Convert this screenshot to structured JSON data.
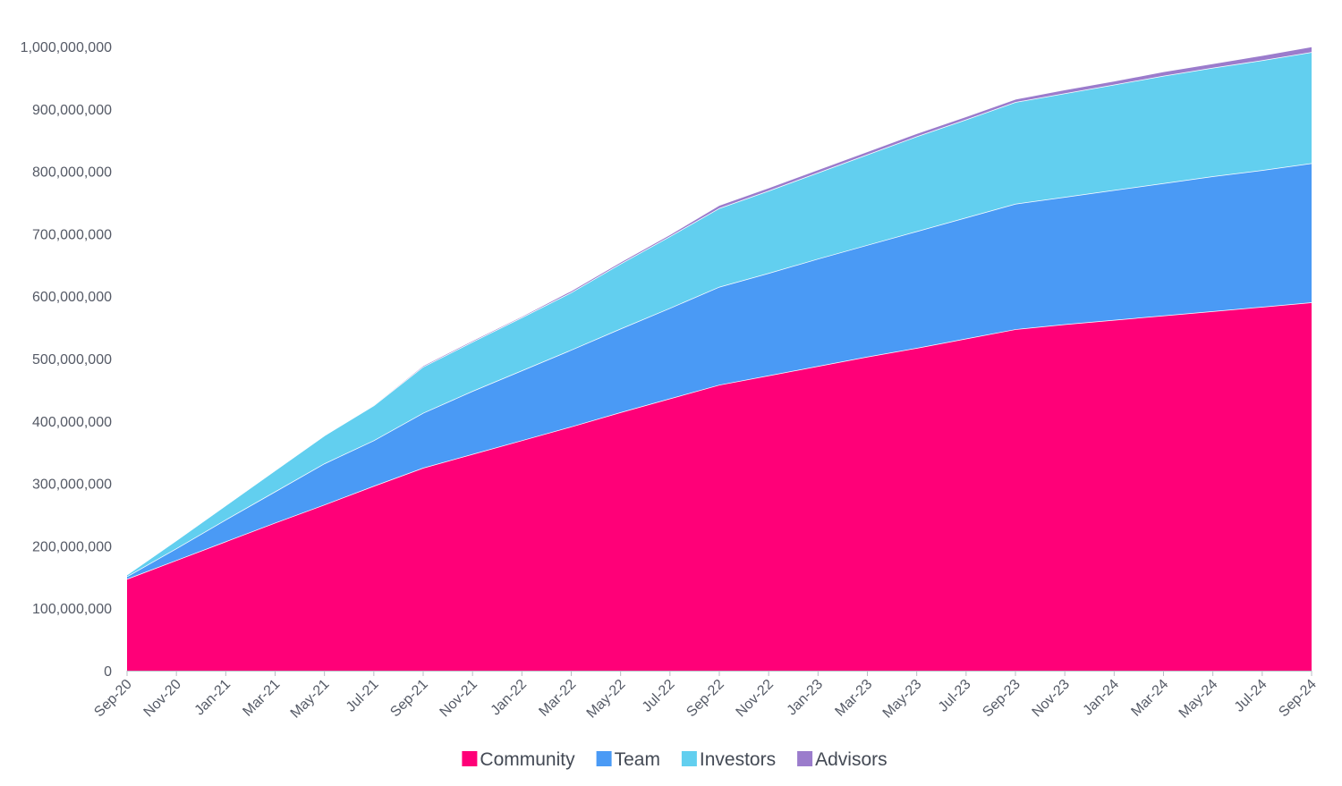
{
  "chart_data": {
    "type": "area",
    "stacked": true,
    "categories": [
      "Sep-20",
      "Nov-20",
      "Jan-21",
      "Mar-21",
      "May-21",
      "Jul-21",
      "Sep-21",
      "Nov-21",
      "Jan-22",
      "Mar-22",
      "May-22",
      "Jul-22",
      "Sep-22",
      "Nov-22",
      "Jan-23",
      "Mar-23",
      "May-23",
      "Jul-23",
      "Sep-23",
      "Nov-23",
      "Jan-24",
      "Mar-24",
      "May-24",
      "Jul-24",
      "Sep-24"
    ],
    "series": [
      {
        "name": "Community",
        "color": "#ff0078",
        "values": [
          147000000,
          177000000,
          207000000,
          237000000,
          266000000,
          296000000,
          325000000,
          347000000,
          369000000,
          391000000,
          414000000,
          436000000,
          458000000,
          473000000,
          488000000,
          503000000,
          517000000,
          532000000,
          547000000,
          555000000,
          562000000,
          569000000,
          576000000,
          583000000,
          590000000
        ]
      },
      {
        "name": "Team",
        "color": "#4a9af5",
        "values": [
          4000000,
          19000000,
          35000000,
          50000000,
          66000000,
          73000000,
          88000000,
          101000000,
          112000000,
          123000000,
          134000000,
          145000000,
          157000000,
          164000000,
          172000000,
          179000000,
          187000000,
          194000000,
          201000000,
          204000000,
          208000000,
          212000000,
          216000000,
          219000000,
          223000000
        ]
      },
      {
        "name": "Investors",
        "color": "#62cfef",
        "values": [
          3000000,
          13000000,
          23000000,
          34000000,
          45000000,
          56000000,
          74000000,
          79000000,
          85000000,
          92000000,
          104000000,
          115000000,
          126000000,
          132000000,
          138000000,
          145000000,
          152000000,
          157000000,
          163000000,
          166000000,
          169000000,
          172000000,
          174000000,
          176000000,
          178000000
        ]
      },
      {
        "name": "Advisors",
        "color": "#9b7ccc",
        "values": [
          0,
          0,
          0,
          0,
          0,
          1000000,
          2000000,
          2000000,
          2000000,
          3000000,
          3000000,
          3000000,
          5000000,
          5000000,
          5000000,
          5000000,
          5000000,
          5000000,
          5000000,
          6000000,
          6000000,
          7000000,
          7000000,
          8000000,
          9000000
        ]
      }
    ],
    "ylim": [
      0,
      1000000000
    ],
    "yticks": [
      0,
      100000000,
      200000000,
      300000000,
      400000000,
      500000000,
      600000000,
      700000000,
      800000000,
      900000000,
      1000000000
    ],
    "ytick_labels": [
      "0",
      "100,000,000",
      "200,000,000",
      "300,000,000",
      "400,000,000",
      "500,000,000",
      "600,000,000",
      "700,000,000",
      "800,000,000",
      "900,000,000",
      "1,000,000,000"
    ],
    "grid": false,
    "legend_position": "bottom"
  }
}
